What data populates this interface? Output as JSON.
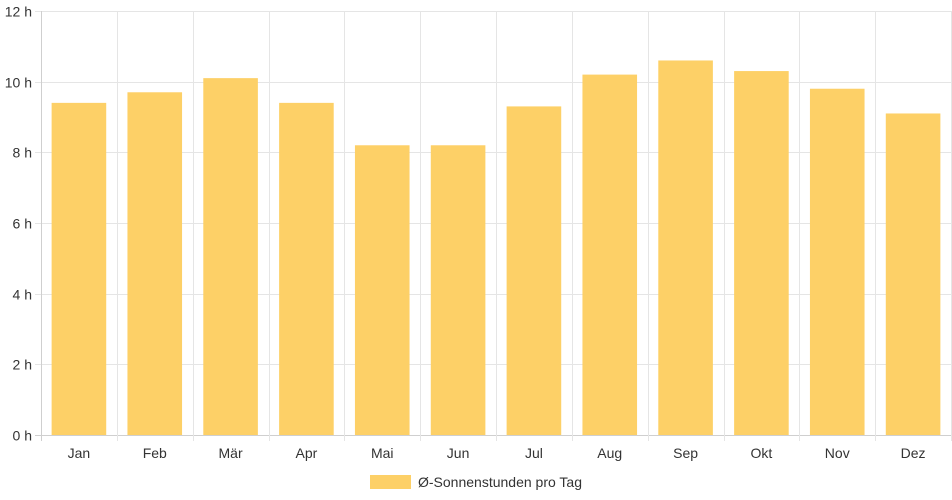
{
  "chart_data": {
    "type": "bar",
    "categories": [
      "Jan",
      "Feb",
      "Mär",
      "Apr",
      "Mai",
      "Jun",
      "Jul",
      "Aug",
      "Sep",
      "Okt",
      "Nov",
      "Dez"
    ],
    "series": [
      {
        "name": "Ø-Sonnenstunden pro Tag",
        "values": [
          9.4,
          9.7,
          10.1,
          9.4,
          8.2,
          8.2,
          9.3,
          10.2,
          10.6,
          10.3,
          9.8,
          9.1
        ],
        "color": "#fdd067"
      }
    ],
    "title": "",
    "xlabel": "",
    "ylabel": "",
    "ylim": [
      0,
      12
    ],
    "yticks": [
      "0 h",
      "2 h",
      "4 h",
      "6 h",
      "8 h",
      "10 h",
      "12 h"
    ],
    "grid": true,
    "legend_position": "bottom"
  }
}
